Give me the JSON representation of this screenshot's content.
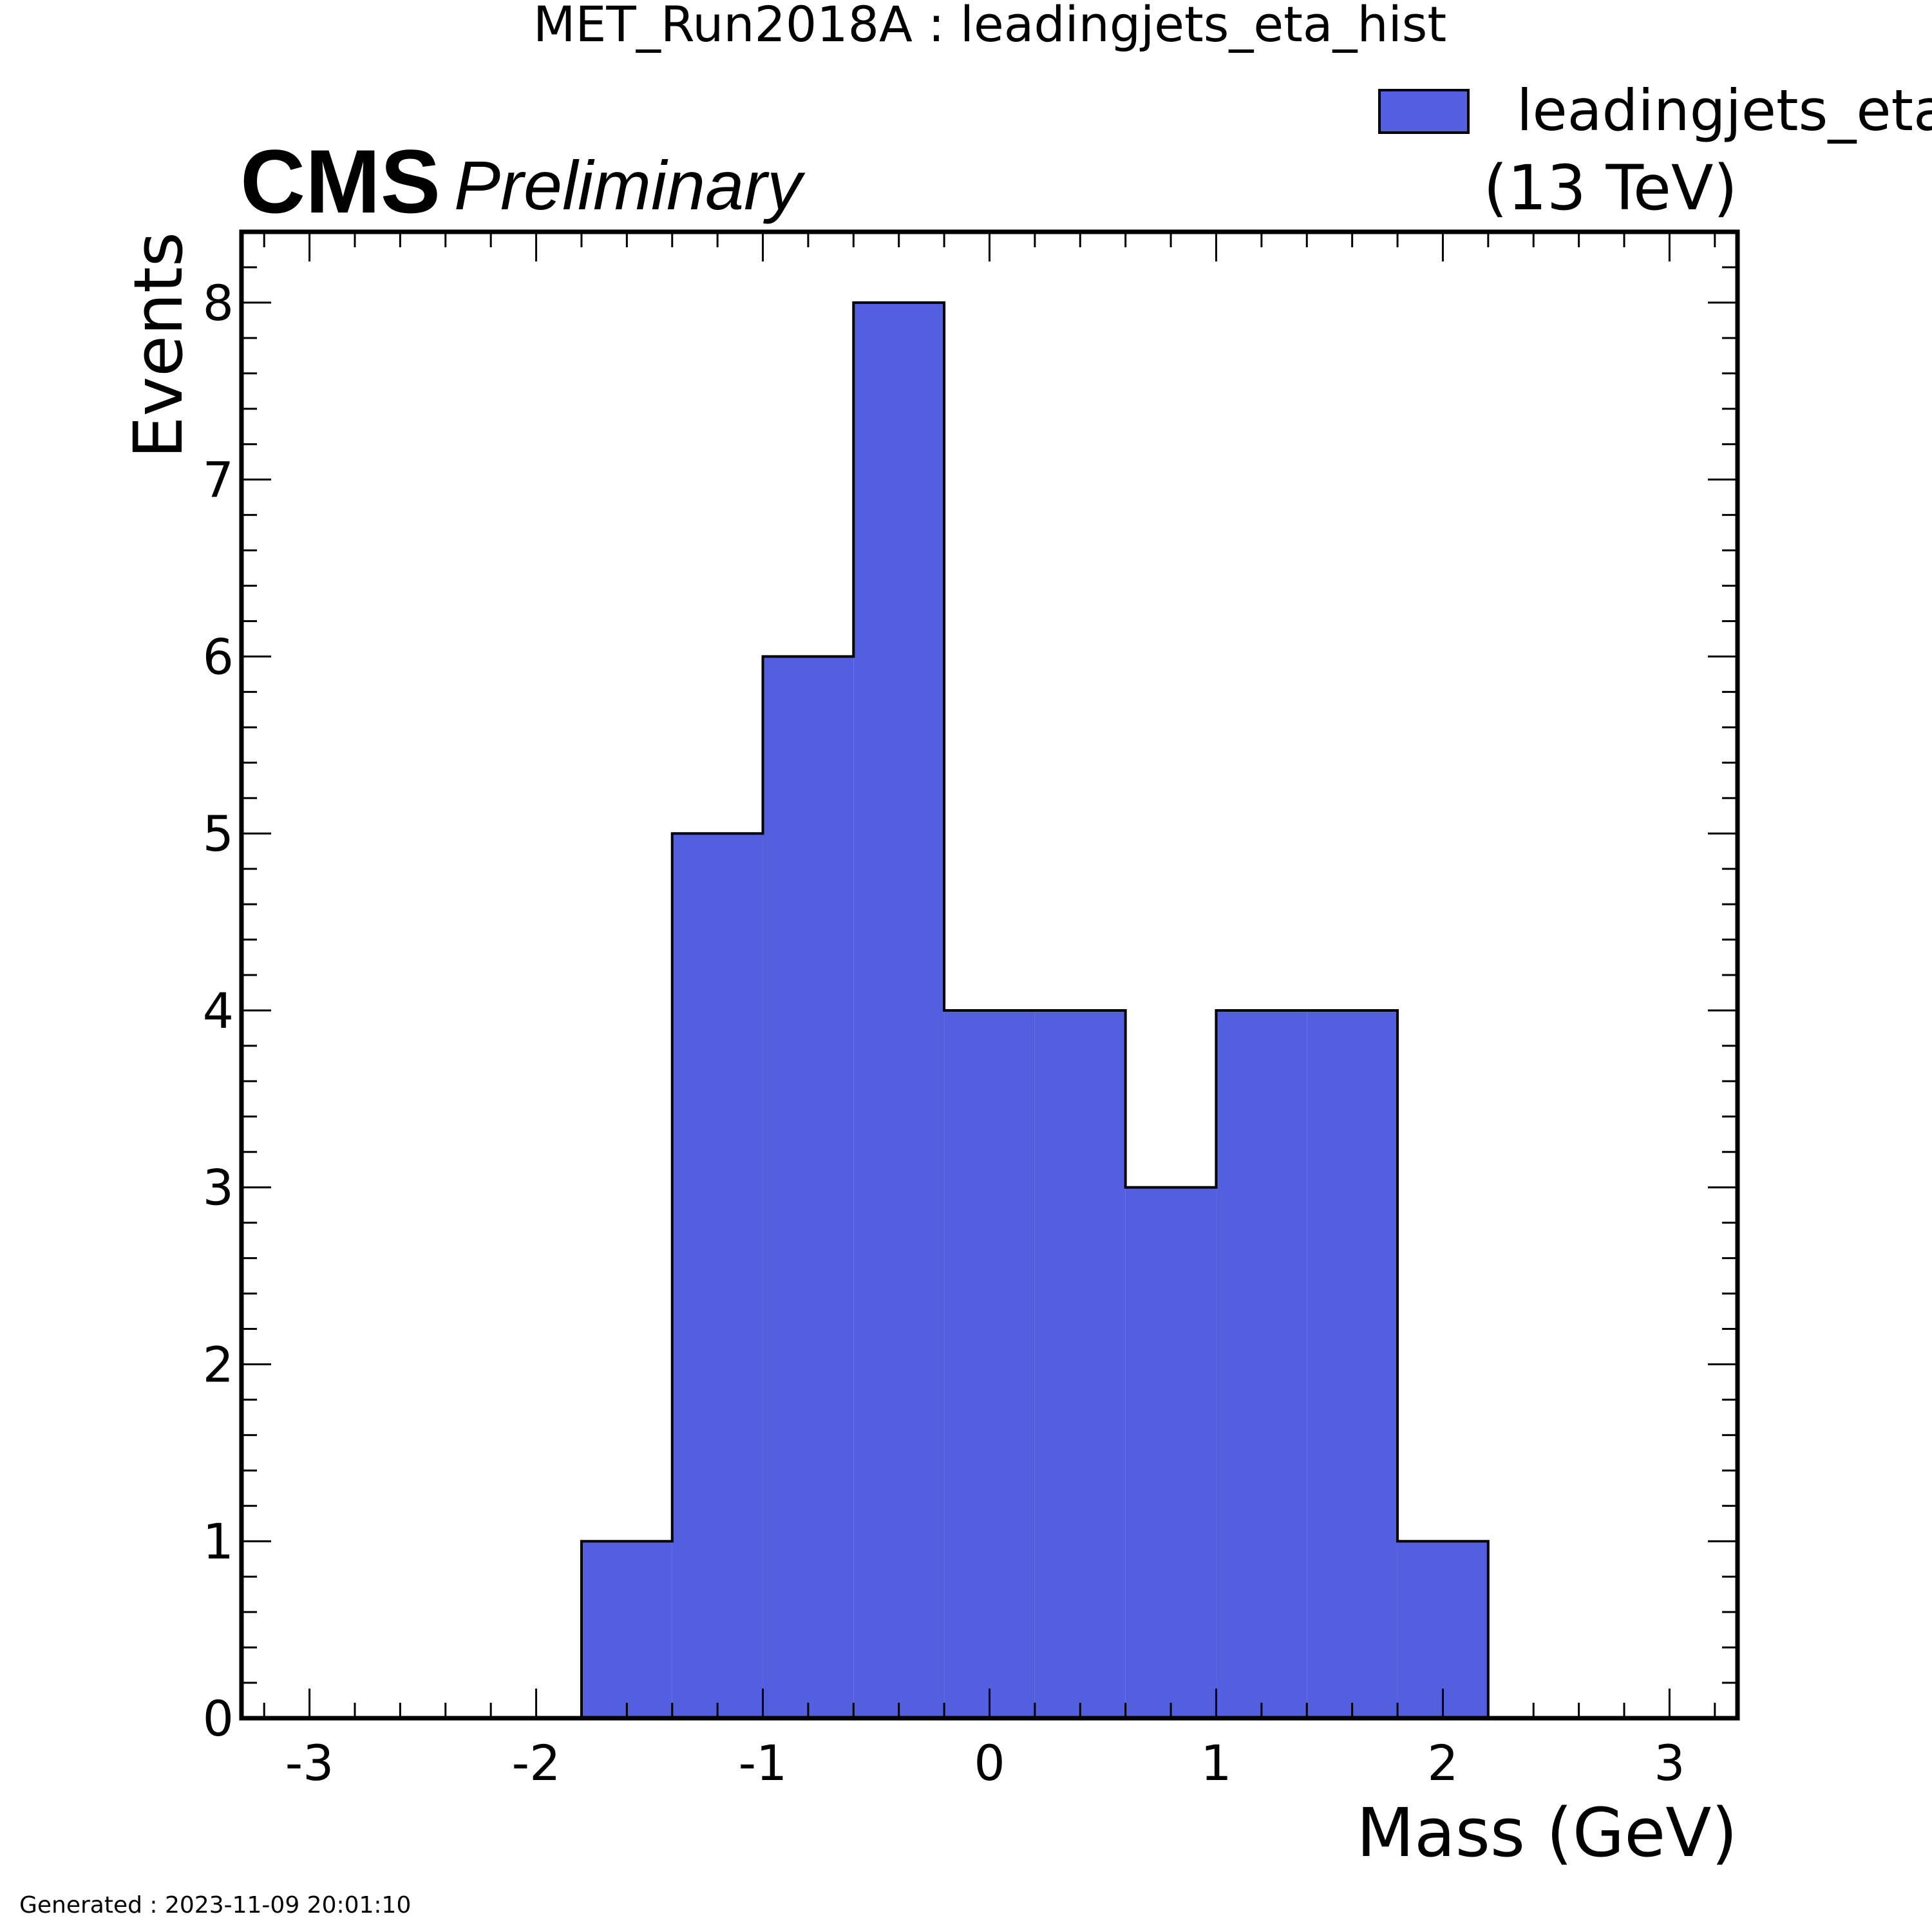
{
  "header": {
    "title": "MET_Run2018A : leadingjets_eta_hist",
    "experiment": "CMS",
    "status": "Preliminary",
    "energy": "(13 TeV)"
  },
  "footer": {
    "generated": "Generated : 2023-11-09 20:01:10"
  },
  "colors": {
    "fill": "#5260e0",
    "edge": "#000000"
  },
  "chart_data": {
    "type": "bar",
    "title": "MET_Run2018A : leadingjets_eta_hist",
    "xlabel": "Mass (GeV)",
    "ylabel": "Events",
    "xlim": [
      -3.3,
      3.3
    ],
    "ylim": [
      0,
      8.4
    ],
    "xticks": [
      -3,
      -2,
      -1,
      0,
      1,
      2,
      3
    ],
    "xtick_labels": [
      "-3",
      "-2",
      "-1",
      "0",
      "1",
      "2",
      "3"
    ],
    "yticks": [
      0,
      1,
      2,
      3,
      4,
      5,
      6,
      7,
      8
    ],
    "ytick_labels": [
      "0",
      "1",
      "2",
      "3",
      "4",
      "5",
      "6",
      "7",
      "8"
    ],
    "bin_edges": [
      -1.8,
      -1.4,
      -1.0,
      -0.6,
      -0.2,
      0.2,
      0.6,
      1.0,
      1.4,
      1.8,
      2.2
    ],
    "values": [
      1,
      5,
      6,
      8,
      4,
      4,
      3,
      4,
      4,
      1
    ],
    "legend": {
      "entries": [
        "leadingjets_eta_"
      ],
      "position": "top-right"
    },
    "grid": false
  }
}
